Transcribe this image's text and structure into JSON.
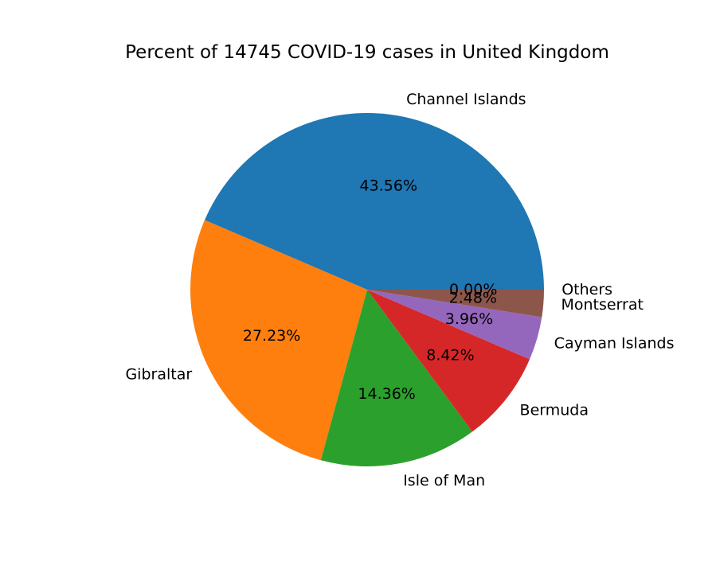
{
  "chart_data": {
    "type": "pie",
    "title": "Percent of 14745 COVID-19 cases in United Kingdom",
    "categories": [
      "Channel Islands",
      "Gibraltar",
      "Isle of Man",
      "Bermuda",
      "Cayman Islands",
      "Montserrat",
      "Others"
    ],
    "values": [
      43.56,
      27.23,
      14.36,
      8.42,
      3.96,
      2.48,
      0.0
    ],
    "value_labels": [
      "43.56%",
      "27.23%",
      "14.36%",
      "8.42%",
      "3.96%",
      "2.48%",
      "0.00%"
    ],
    "colors": [
      "#1f77b4",
      "#ff7f0e",
      "#2ca02c",
      "#d62728",
      "#9467bd",
      "#8c564b",
      "#e377c2"
    ],
    "start_angle": "3 o'clock",
    "direction": "counter-clockwise",
    "legend": "none"
  }
}
